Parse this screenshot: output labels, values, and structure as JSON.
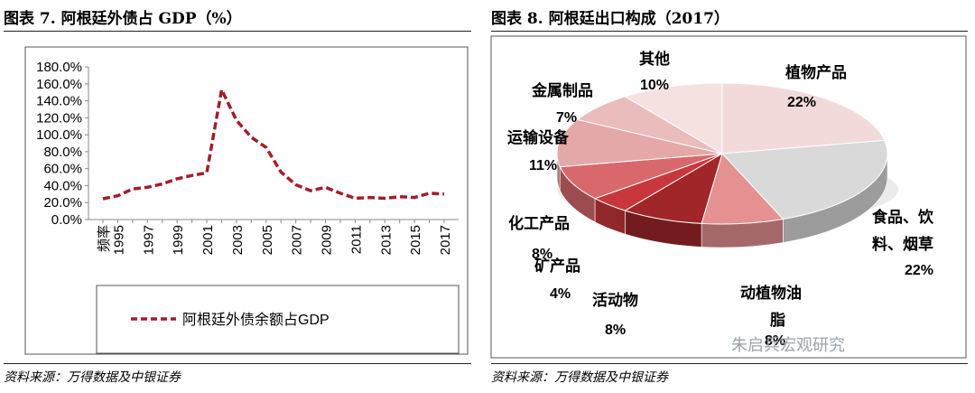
{
  "left": {
    "title": "图表 7. 阿根廷外债占 GDP（%）",
    "source": "资料来源：万得数据及中银证券",
    "legend_label": "阿根廷外债余额占GDP",
    "x_first_label": "频率"
  },
  "right": {
    "title": "图表 8. 阿根廷出口构成（2017）",
    "source": "资料来源：万得数据及中银证券"
  },
  "watermark": "朱启兵宏观研究",
  "chart_data": [
    {
      "type": "line",
      "title": "阿根廷外债占 GDP（%）",
      "series": [
        {
          "name": "阿根廷外债余额占GDP",
          "color": "#a31d2a",
          "x": [
            1994,
            1995,
            1996,
            1997,
            1998,
            1999,
            2000,
            2001,
            2002,
            2003,
            2004,
            2005,
            2006,
            2007,
            2008,
            2009,
            2010,
            2011,
            2012,
            2013,
            2014,
            2015,
            2016,
            2017
          ],
          "values": [
            24.5,
            28,
            36,
            38,
            42,
            48,
            52,
            55,
            153,
            117,
            97,
            85,
            56,
            41,
            34,
            38,
            31,
            25,
            26,
            25,
            27,
            26,
            31,
            30
          ]
        }
      ],
      "ylim": [
        0,
        180
      ],
      "yticks": [
        "0.0%",
        "20.0%",
        "40.0%",
        "60.0%",
        "80.0%",
        "100.0%",
        "120.0%",
        "140.0%",
        "160.0%",
        "180.0%"
      ],
      "xtick_labels": [
        "1995",
        "1997",
        "1999",
        "2001",
        "2003",
        "2005",
        "2007",
        "2009",
        "2011",
        "2013",
        "2015",
        "2017"
      ],
      "legend": "bottom-box",
      "grid": false
    },
    {
      "type": "pie",
      "title": "阿根廷出口构成（2017）",
      "slices": [
        {
          "label": "植物产品",
          "value": 22,
          "value_label": "22%",
          "color": "#f3dada"
        },
        {
          "label": "食品、饮料、烟草",
          "value": 22,
          "value_label": "22%",
          "color": "#d9d9d9"
        },
        {
          "label": "动植物油脂",
          "value": 8,
          "value_label": "8%",
          "color": "#e59191"
        },
        {
          "label": "活动物",
          "value": 8,
          "value_label": "8%",
          "color": "#a0262a"
        },
        {
          "label": "矿产品",
          "value": 4,
          "value_label": "4%",
          "color": "#c8373c"
        },
        {
          "label": "化工产品",
          "value": 8,
          "value_label": "8%",
          "color": "#d9686d"
        },
        {
          "label": "运输设备",
          "value": 11,
          "value_label": "11%",
          "color": "#e5a8a8"
        },
        {
          "label": "金属制品",
          "value": 7,
          "value_label": "7%",
          "color": "#ebbcbc"
        },
        {
          "label": "其他",
          "value": 10,
          "value_label": "10%",
          "color": "#f6e1e1"
        }
      ],
      "style": "3d-tilted"
    }
  ]
}
